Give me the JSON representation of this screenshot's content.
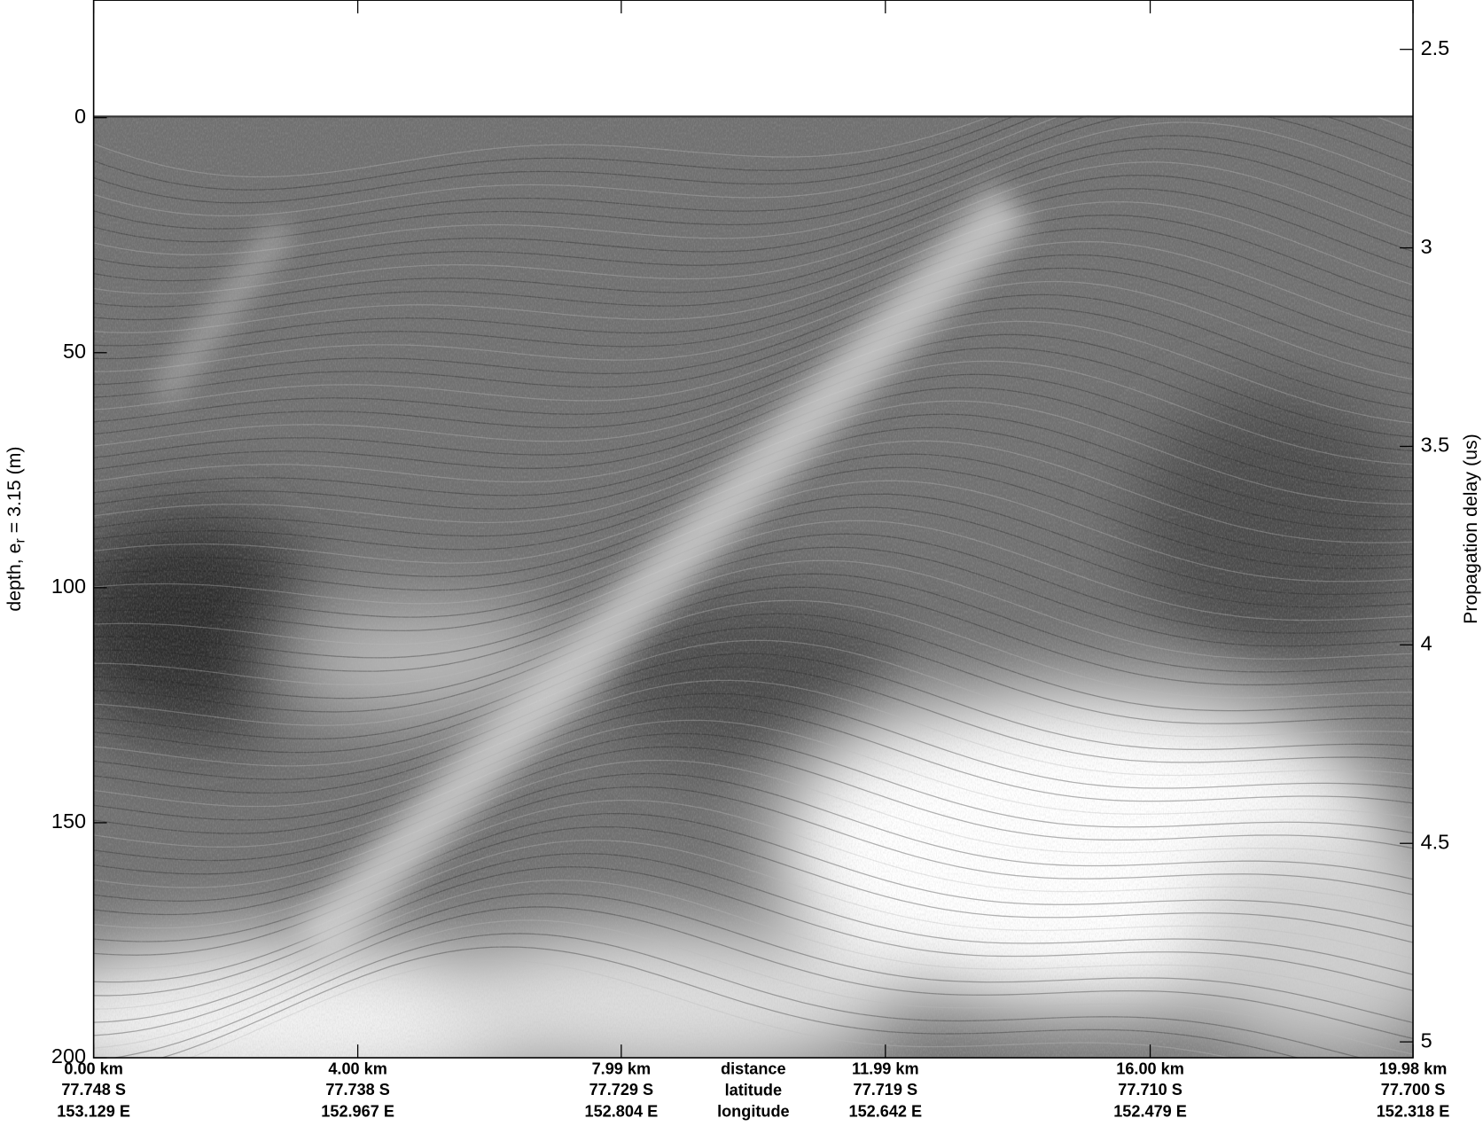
{
  "chart_data": {
    "type": "radargram",
    "ylabel_parts": [
      "depth, e",
      "r",
      " = 3.15 (m)"
    ],
    "y2label": "Propagation delay (us)",
    "xlim": [
      0,
      19.98
    ],
    "xticks": [
      {
        "value": 0,
        "label": "0.00 km"
      },
      {
        "value": 4.0,
        "label": "4.00 km"
      },
      {
        "value": 7.99,
        "label": "7.99 km"
      },
      {
        "value": 11.99,
        "label": "11.99 km"
      },
      {
        "value": 16.0,
        "label": "16.00 km"
      },
      {
        "value": 19.98,
        "label": "19.98 km"
      }
    ],
    "latitude_labels": [
      "77.748 S",
      "77.738 S",
      "77.729 S",
      "77.719 S",
      "77.710 S",
      "77.700 S"
    ],
    "longitude_labels": [
      "153.129 E",
      "152.967 E",
      "152.804 E",
      "152.642 E",
      "152.479 E",
      "152.318 E"
    ],
    "row_names": [
      "distance",
      "latitude",
      "longitude"
    ],
    "ylim": [
      -25,
      200
    ],
    "yticks": [
      0,
      50,
      100,
      150,
      200
    ],
    "y2lim": [
      2.376,
      5.04
    ],
    "y2ticks": [
      2.5,
      3,
      3.5,
      4,
      4.5,
      5
    ]
  }
}
